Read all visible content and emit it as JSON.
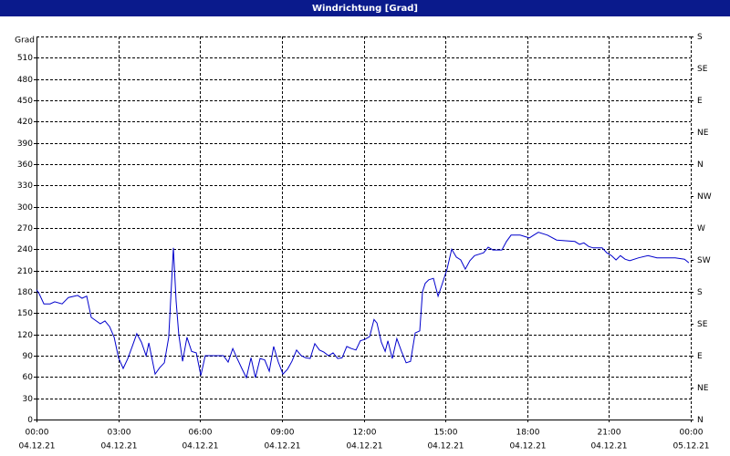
{
  "chart_data": {
    "type": "line",
    "title": "Windrichtung [Grad]",
    "ylabel": "Grad",
    "color": "#0000cc",
    "x": [
      0,
      0.1,
      0.27,
      0.5,
      0.67,
      0.94,
      1.17,
      1.51,
      1.67,
      1.84,
      2.01,
      2.34,
      2.51,
      2.68,
      2.85,
      3.01,
      3.18,
      3.35,
      3.51,
      3.68,
      3.85,
      4.02,
      4.12,
      4.35,
      4.52,
      4.69,
      4.85,
      5.02,
      5.12,
      5.22,
      5.36,
      5.52,
      5.69,
      5.86,
      6.03,
      6.19,
      6.53,
      6.86,
      7.03,
      7.2,
      7.36,
      7.53,
      7.7,
      7.87,
      8.03,
      8.2,
      8.37,
      8.54,
      8.7,
      8.87,
      9.04,
      9.21,
      9.37,
      9.54,
      9.71,
      9.87,
      10.04,
      10.21,
      10.38,
      10.54,
      10.71,
      10.88,
      11.05,
      11.21,
      11.38,
      11.55,
      11.72,
      11.88,
      12.05,
      12.22,
      12.38,
      12.49,
      12.65,
      12.79,
      12.89,
      13.05,
      13.22,
      13.39,
      13.56,
      13.72,
      13.89,
      14.06,
      14.16,
      14.26,
      14.39,
      14.56,
      14.73,
      14.9,
      15.06,
      15.23,
      15.4,
      15.56,
      15.73,
      15.9,
      16.07,
      16.4,
      16.57,
      16.74,
      17.07,
      17.24,
      17.41,
      17.74,
      18.08,
      18.24,
      18.41,
      18.74,
      19.08,
      19.41,
      19.75,
      19.92,
      20.08,
      20.25,
      20.42,
      20.75,
      20.92,
      21.09,
      21.26,
      21.42,
      21.59,
      21.76,
      22.09,
      22.43,
      22.76,
      23.43,
      23.77,
      23.93
    ],
    "values": [
      183,
      177,
      163,
      163,
      166,
      163,
      172,
      175,
      171,
      174,
      144,
      135,
      139,
      131,
      116,
      87,
      72,
      86,
      103,
      121,
      109,
      90,
      108,
      64,
      73,
      80,
      116,
      242,
      167,
      120,
      82,
      116,
      96,
      94,
      62,
      90,
      90,
      90,
      81,
      100,
      86,
      72,
      59,
      87,
      59,
      86,
      84,
      68,
      103,
      81,
      64,
      71,
      82,
      98,
      90,
      87,
      86,
      107,
      98,
      95,
      90,
      94,
      86,
      87,
      103,
      100,
      98,
      111,
      113,
      117,
      141,
      136,
      109,
      96,
      111,
      86,
      114,
      96,
      80,
      82,
      122,
      125,
      180,
      192,
      197,
      199,
      174,
      193,
      212,
      240,
      229,
      225,
      212,
      224,
      231,
      235,
      243,
      239,
      239,
      251,
      260,
      260,
      256,
      260,
      264,
      260,
      253,
      252,
      251,
      247,
      249,
      244,
      242,
      242,
      235,
      231,
      225,
      231,
      226,
      224,
      228,
      231,
      228,
      228,
      226,
      221
    ],
    "xlim": [
      0,
      24
    ],
    "xticks": [
      {
        "value": 0,
        "label": "00:00"
      },
      {
        "value": 3,
        "label": "03:00"
      },
      {
        "value": 6,
        "label": "06:00"
      },
      {
        "value": 9,
        "label": "09:00"
      },
      {
        "value": 12,
        "label": "12:00"
      },
      {
        "value": 15,
        "label": "15:00"
      },
      {
        "value": 18,
        "label": "18:00"
      },
      {
        "value": 21,
        "label": "21:00"
      },
      {
        "value": 24,
        "label": "00:00"
      }
    ],
    "xtick_dates": [
      "04.12.21",
      "04.12.21",
      "04.12.21",
      "04.12.21",
      "04.12.21",
      "04.12.21",
      "04.12.21",
      "04.12.21",
      "05.12.21"
    ],
    "ylim": [
      0,
      540
    ],
    "yticks": [
      0,
      30,
      60,
      90,
      120,
      150,
      180,
      210,
      240,
      270,
      300,
      330,
      360,
      390,
      420,
      450,
      480,
      510
    ],
    "y2lim": [
      0,
      540
    ],
    "y2ticks": [
      {
        "value": 0,
        "label": "N"
      },
      {
        "value": 45,
        "label": "NE"
      },
      {
        "value": 90,
        "label": "E"
      },
      {
        "value": 135,
        "label": "SE"
      },
      {
        "value": 180,
        "label": "S"
      },
      {
        "value": 225,
        "label": "SW"
      },
      {
        "value": 270,
        "label": "W"
      },
      {
        "value": 315,
        "label": "NW"
      },
      {
        "value": 360,
        "label": "N"
      },
      {
        "value": 405,
        "label": "NE"
      },
      {
        "value": 450,
        "label": "E"
      },
      {
        "value": 495,
        "label": "SE"
      },
      {
        "value": 540,
        "label": "S"
      }
    ],
    "grid": true
  }
}
